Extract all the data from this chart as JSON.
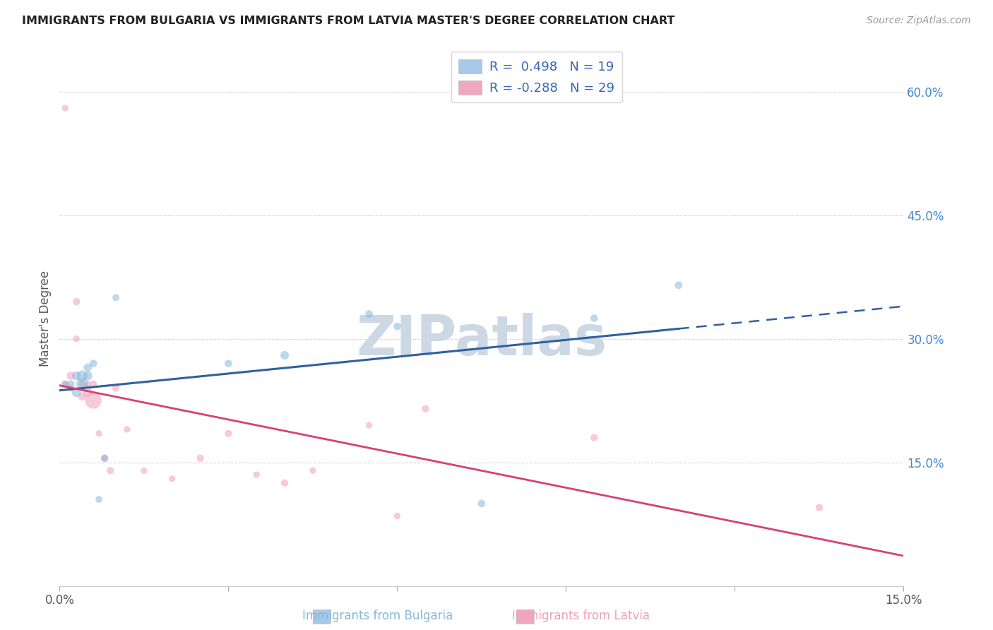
{
  "title": "IMMIGRANTS FROM BULGARIA VS IMMIGRANTS FROM LATVIA MASTER'S DEGREE CORRELATION CHART",
  "source": "Source: ZipAtlas.com",
  "ylabel": "Master's Degree",
  "xlim": [
    0.0,
    0.15
  ],
  "ylim": [
    0.0,
    0.65
  ],
  "legend_r1": "R =  0.498   N = 19",
  "legend_r2": "R = -0.288   N = 29",
  "legend_color1": "#a8c8e8",
  "legend_color2": "#f0a8c0",
  "color_bulgaria": "#88b8d8",
  "color_latvia": "#f0a0b8",
  "line_color_bulgaria": "#3060a0",
  "line_color_latvia": "#d84070",
  "watermark": "ZIPatlas",
  "watermark_color": "#ccd8e4",
  "bg_color": "#ffffff",
  "grid_color": "#d8d8d8",
  "tick_label_color": "#4488cc",
  "title_color": "#222222",
  "source_color": "#999999",
  "ylabel_color": "#555555",
  "xtick_color": "#555555",
  "bulgaria_x": [
    0.001,
    0.002,
    0.003,
    0.003,
    0.004,
    0.004,
    0.005,
    0.005,
    0.006,
    0.007,
    0.008,
    0.01,
    0.03,
    0.04,
    0.055,
    0.06,
    0.075,
    0.095,
    0.11
  ],
  "bulgaria_y": [
    0.245,
    0.245,
    0.255,
    0.235,
    0.255,
    0.245,
    0.255,
    0.265,
    0.27,
    0.105,
    0.155,
    0.35,
    0.27,
    0.28,
    0.33,
    0.315,
    0.1,
    0.325,
    0.365
  ],
  "bulgaria_s": [
    50,
    60,
    80,
    90,
    120,
    150,
    90,
    70,
    60,
    50,
    60,
    50,
    60,
    75,
    60,
    60,
    60,
    60,
    60
  ],
  "latvia_x": [
    0.001,
    0.001,
    0.002,
    0.002,
    0.003,
    0.003,
    0.004,
    0.004,
    0.005,
    0.005,
    0.006,
    0.006,
    0.007,
    0.008,
    0.009,
    0.01,
    0.012,
    0.015,
    0.02,
    0.025,
    0.03,
    0.035,
    0.04,
    0.045,
    0.055,
    0.06,
    0.065,
    0.095,
    0.135
  ],
  "latvia_y": [
    0.58,
    0.245,
    0.255,
    0.24,
    0.345,
    0.3,
    0.245,
    0.23,
    0.235,
    0.245,
    0.245,
    0.225,
    0.185,
    0.155,
    0.14,
    0.24,
    0.19,
    0.14,
    0.13,
    0.155,
    0.185,
    0.135,
    0.125,
    0.14,
    0.195,
    0.085,
    0.215,
    0.18,
    0.095
  ],
  "latvia_s": [
    45,
    55,
    70,
    45,
    55,
    45,
    55,
    70,
    85,
    45,
    55,
    280,
    45,
    45,
    55,
    55,
    45,
    45,
    45,
    55,
    55,
    45,
    55,
    45,
    45,
    45,
    55,
    55,
    55
  ]
}
